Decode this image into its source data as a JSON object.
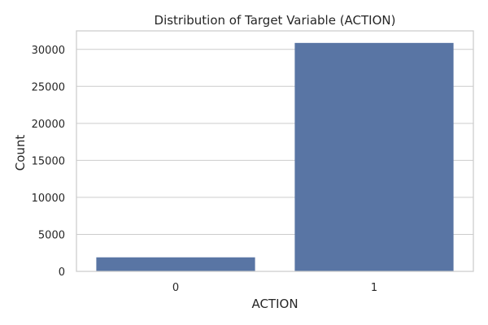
{
  "chart_data": {
    "type": "bar",
    "title": "Distribution of Target Variable (ACTION)",
    "xlabel": "ACTION",
    "ylabel": "Count",
    "categories": [
      "0",
      "1"
    ],
    "values": [
      1897,
      30872
    ],
    "ylim": [
      0,
      32500
    ],
    "yticks": [
      0,
      5000,
      10000,
      15000,
      20000,
      25000,
      30000
    ],
    "grid": true,
    "bar_color": "#5975a4",
    "grid_color": "#cccccc",
    "spine_color": "#cccccc"
  }
}
